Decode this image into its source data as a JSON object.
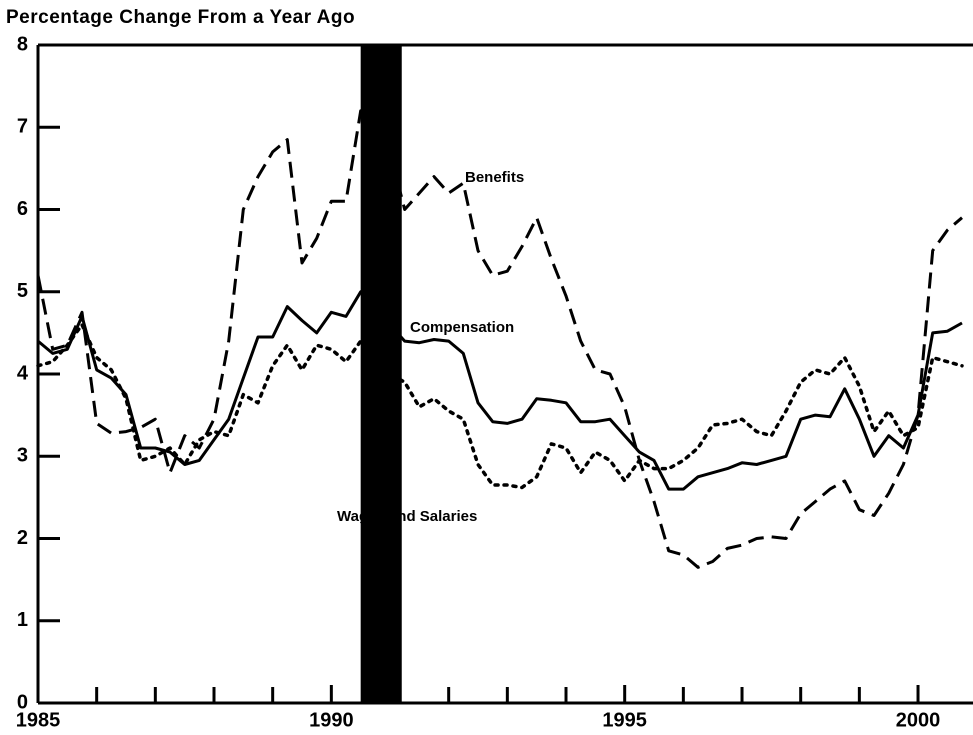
{
  "chart_data": {
    "type": "line",
    "title": "Percentage Change From a Year Ago",
    "x": [
      1985,
      1985.25,
      1985.5,
      1985.75,
      1986,
      1986.25,
      1986.5,
      1986.75,
      1987,
      1987.25,
      1987.5,
      1987.75,
      1988,
      1988.25,
      1988.5,
      1988.75,
      1989,
      1989.25,
      1989.5,
      1989.75,
      1990,
      1990.25,
      1990.5,
      1990.75,
      1991,
      1991.25,
      1991.5,
      1991.75,
      1992,
      1992.25,
      1992.5,
      1992.75,
      1993,
      1993.25,
      1993.5,
      1993.75,
      1994,
      1994.25,
      1994.5,
      1994.75,
      1995,
      1995.25,
      1995.5,
      1995.75,
      1996,
      1996.25,
      1996.5,
      1996.75,
      1997,
      1997.25,
      1997.5,
      1997.75,
      1998,
      1998.25,
      1998.5,
      1998.75,
      1999,
      1999.25,
      1999.5,
      1999.75,
      2000,
      2000.25,
      2000.5,
      2000.75
    ],
    "series": [
      {
        "name": "Benefits",
        "color": "#000000",
        "style": "dashed",
        "values": [
          5.2,
          4.3,
          4.35,
          4.75,
          3.4,
          3.28,
          3.3,
          3.35,
          3.45,
          2.8,
          3.25,
          3.1,
          3.45,
          4.4,
          6.0,
          6.4,
          6.7,
          6.85,
          5.35,
          5.65,
          6.1,
          6.1,
          7.2,
          6.8,
          6.7,
          6.0,
          6.2,
          6.4,
          6.2,
          6.32,
          5.5,
          5.2,
          5.25,
          5.55,
          5.9,
          5.4,
          4.95,
          4.4,
          4.05,
          4.0,
          3.6,
          2.95,
          2.45,
          1.85,
          1.8,
          1.65,
          1.72,
          1.88,
          1.92,
          2.0,
          2.02,
          2.0,
          2.3,
          2.45,
          2.6,
          2.7,
          2.35,
          2.28,
          2.55,
          2.9,
          3.5,
          5.5,
          5.75,
          5.9
        ]
      },
      {
        "name": "Compensation",
        "color": "#000000",
        "style": "solid",
        "values": [
          4.4,
          4.25,
          4.3,
          4.7,
          4.05,
          3.95,
          3.75,
          3.1,
          3.1,
          3.05,
          2.9,
          2.95,
          3.2,
          3.45,
          3.95,
          4.45,
          4.45,
          4.82,
          4.65,
          4.5,
          4.75,
          4.7,
          5.0,
          5.1,
          4.6,
          4.4,
          4.38,
          4.42,
          4.4,
          4.25,
          3.65,
          3.42,
          3.4,
          3.45,
          3.7,
          3.68,
          3.65,
          3.42,
          3.42,
          3.45,
          3.25,
          3.05,
          2.95,
          2.6,
          2.6,
          2.75,
          2.8,
          2.85,
          2.92,
          2.9,
          2.95,
          3.0,
          3.45,
          3.5,
          3.48,
          3.82,
          3.45,
          3.0,
          3.25,
          3.1,
          3.5,
          4.5,
          4.52,
          4.62
        ]
      },
      {
        "name": "Wages and Salaries",
        "color": "#000000",
        "style": "dotted",
        "values": [
          4.1,
          4.15,
          4.35,
          4.6,
          4.2,
          4.05,
          3.7,
          2.95,
          3.0,
          3.1,
          2.9,
          3.2,
          3.3,
          3.25,
          3.75,
          3.65,
          4.1,
          4.35,
          4.05,
          4.35,
          4.3,
          4.15,
          4.4,
          4.35,
          4.0,
          3.9,
          3.6,
          3.7,
          3.55,
          3.45,
          2.9,
          2.65,
          2.65,
          2.62,
          2.75,
          3.15,
          3.1,
          2.8,
          3.05,
          2.95,
          2.7,
          2.95,
          2.85,
          2.85,
          2.95,
          3.1,
          3.38,
          3.4,
          3.45,
          3.3,
          3.25,
          3.55,
          3.9,
          4.05,
          4.0,
          4.2,
          3.85,
          3.3,
          3.55,
          3.25,
          3.35,
          4.2,
          4.15,
          4.1
        ]
      }
    ],
    "recession": [
      1990.5,
      1991.2
    ],
    "recession_color": "#000000",
    "xlim": [
      1985,
      2000.92
    ],
    "xticks": [
      1985,
      1990,
      1995,
      2000
    ],
    "xminorticks": [
      1986,
      1987,
      1988,
      1989,
      1991,
      1992,
      1993,
      1994,
      1996,
      1997,
      1998,
      1999
    ],
    "ylim": [
      0,
      8
    ],
    "yticks": [
      0,
      1,
      2,
      3,
      4,
      5,
      6,
      7,
      8
    ],
    "grid": false
  }
}
